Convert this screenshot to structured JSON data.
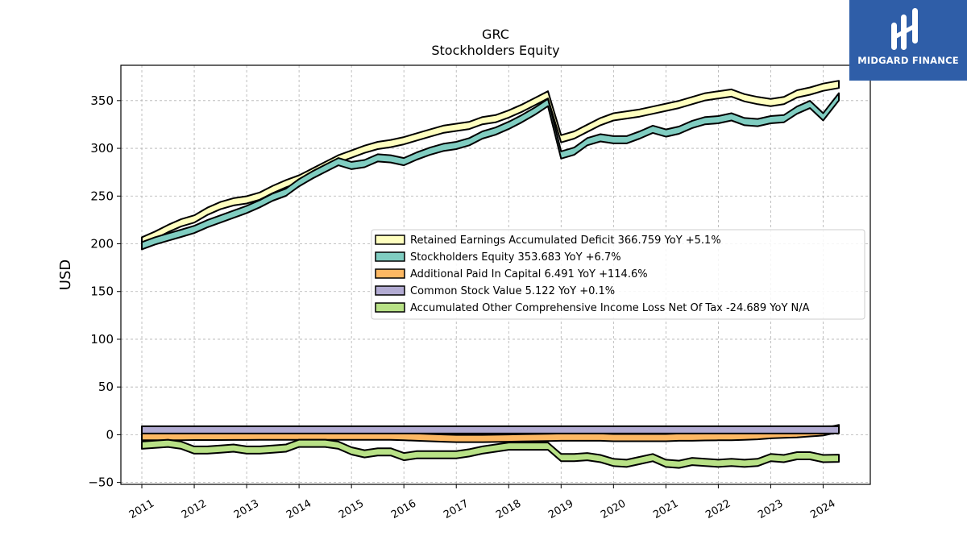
{
  "brand": {
    "name": "MIDGARD FINANCE",
    "color": "#2f5ea8",
    "logo_icon": "midgard-logo-icon"
  },
  "chart_data": {
    "type": "area",
    "title": "GRC",
    "subtitle": "Stockholders  Equity",
    "ylabel": "USD",
    "xlabel": "",
    "ylim": [
      -52,
      387
    ],
    "xlim": [
      2010.6,
      2024.9
    ],
    "yticks": [
      -50,
      0,
      50,
      100,
      150,
      200,
      250,
      300,
      350
    ],
    "xticks": [
      2011,
      2012,
      2013,
      2014,
      2015,
      2016,
      2017,
      2018,
      2019,
      2020,
      2021,
      2022,
      2023,
      2024
    ],
    "grid": true,
    "legend_position": "center-right",
    "x": [
      2011.0,
      2011.25,
      2011.5,
      2011.75,
      2012.0,
      2012.25,
      2012.5,
      2012.75,
      2013.0,
      2013.25,
      2013.5,
      2013.75,
      2014.0,
      2014.25,
      2014.5,
      2014.75,
      2015.0,
      2015.25,
      2015.5,
      2015.75,
      2016.0,
      2016.25,
      2016.5,
      2016.75,
      2017.0,
      2017.25,
      2017.5,
      2017.75,
      2018.0,
      2018.25,
      2018.5,
      2018.75,
      2019.0,
      2019.25,
      2019.5,
      2019.75,
      2020.0,
      2020.25,
      2020.5,
      2020.75,
      2021.0,
      2021.25,
      2021.5,
      2021.75,
      2022.0,
      2022.25,
      2022.5,
      2022.75,
      2023.0,
      2023.25,
      2023.5,
      2023.75,
      2024.0,
      2024.3
    ],
    "series": [
      {
        "name": "Retained Earnings Accumulated Deficit",
        "label": "Retained Earnings Accumulated Deficit  366.759 YoY +5.1%",
        "color": "#ffffbf",
        "values": [
          203,
          209,
          216,
          222,
          226,
          234,
          240,
          244,
          246,
          250,
          257,
          263,
          268,
          275,
          282,
          289,
          294,
          299,
          303,
          305,
          308,
          312,
          316,
          320,
          322,
          324,
          329,
          331,
          336,
          342,
          349,
          356,
          310,
          314,
          321,
          328,
          333,
          335,
          337,
          340,
          343,
          346,
          350,
          354,
          356,
          358,
          353,
          350,
          348,
          350,
          357,
          360,
          364,
          367
        ]
      },
      {
        "name": "Stockholders Equity",
        "label": "Stockholders Equity  353.683 YoY +6.7%",
        "color": "#80cdc1",
        "values": [
          198,
          203,
          207,
          211,
          215,
          221,
          226,
          231,
          236,
          242,
          249,
          254,
          264,
          272,
          279,
          286,
          282,
          284,
          290,
          289,
          286,
          292,
          297,
          301,
          303,
          307,
          314,
          318,
          324,
          331,
          339,
          348,
          293,
          297,
          307,
          311,
          309,
          309,
          314,
          320,
          316,
          319,
          325,
          329,
          330,
          333,
          328,
          327,
          330,
          331,
          340,
          346,
          333,
          354
        ]
      },
      {
        "name": "Additional Paid In Capital",
        "label": "Additional Paid In Capital  6.491 YoY +114.6%",
        "color": "#fdb863",
        "values": [
          -2.0,
          -2.0,
          -2.0,
          -2.0,
          -1.8,
          -1.8,
          -1.8,
          -1.7,
          -1.7,
          -1.6,
          -1.6,
          -1.5,
          -1.5,
          -1.5,
          -1.5,
          -1.5,
          -1.5,
          -1.5,
          -1.5,
          -1.6,
          -2.0,
          -2.5,
          -3.0,
          -3.5,
          -4.0,
          -4.0,
          -4.0,
          -3.8,
          -3.5,
          -3.2,
          -3.0,
          -2.8,
          -2.5,
          -2.5,
          -2.5,
          -2.5,
          -3.0,
          -3.0,
          -3.0,
          -3.0,
          -3.0,
          -2.5,
          -2.5,
          -2.2,
          -2.0,
          -2.0,
          -1.5,
          -1.0,
          0.0,
          0.5,
          1.0,
          2.0,
          3.0,
          6.491
        ]
      },
      {
        "name": "Common Stock Value",
        "label": "Common Stock Value  5.122 YoY +0.1%",
        "color": "#b2abd2",
        "values": [
          5.1,
          5.1,
          5.1,
          5.1,
          5.1,
          5.1,
          5.1,
          5.1,
          5.1,
          5.1,
          5.1,
          5.1,
          5.1,
          5.1,
          5.1,
          5.1,
          5.1,
          5.1,
          5.1,
          5.1,
          5.1,
          5.1,
          5.1,
          5.1,
          5.1,
          5.1,
          5.1,
          5.1,
          5.1,
          5.1,
          5.1,
          5.1,
          5.1,
          5.1,
          5.1,
          5.1,
          5.1,
          5.1,
          5.1,
          5.1,
          5.1,
          5.1,
          5.1,
          5.1,
          5.1,
          5.1,
          5.1,
          5.1,
          5.1,
          5.1,
          5.1,
          5.1,
          5.1,
          5.122
        ]
      },
      {
        "name": "Accumulated Other Comprehensive Income Loss Net Of Tax",
        "label": "Accumulated Other Comprehensive Income Loss Net Of Tax  -24.689 YoY N/A",
        "color": "#b8e186",
        "values": [
          -11,
          -10,
          -9,
          -11,
          -16,
          -16,
          -15,
          -14,
          -16,
          -16,
          -15,
          -14,
          -9,
          -9,
          -9,
          -11,
          -17,
          -20,
          -18,
          -18,
          -23,
          -21,
          -21,
          -21,
          -21,
          -19,
          -16,
          -14,
          -12,
          -12,
          -12,
          -12,
          -24,
          -24,
          -23,
          -25,
          -29,
          -30,
          -27,
          -24,
          -30,
          -31,
          -28,
          -29,
          -30,
          -29,
          -30,
          -29,
          -24,
          -25,
          -22,
          -22,
          -25,
          -24.689
        ]
      }
    ]
  }
}
